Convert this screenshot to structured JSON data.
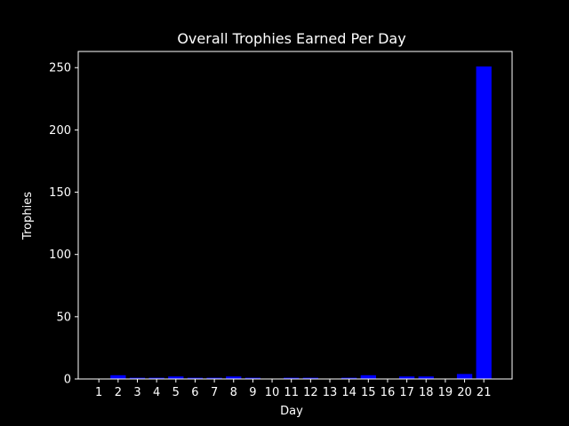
{
  "chart_data": {
    "type": "bar",
    "title": "Overall Trophies Earned Per Day",
    "xlabel": "Day",
    "ylabel": "Trophies",
    "categories": [
      "1",
      "2",
      "3",
      "4",
      "5",
      "6",
      "7",
      "8",
      "9",
      "10",
      "11",
      "12",
      "13",
      "14",
      "15",
      "16",
      "17",
      "18",
      "19",
      "20",
      "21"
    ],
    "values": [
      0,
      3,
      1,
      1,
      2,
      1,
      1,
      2,
      1,
      0,
      1,
      1,
      0,
      1,
      3,
      0,
      2,
      2,
      0,
      4,
      251
    ],
    "ylim": [
      0,
      263
    ],
    "yticks": [
      0,
      50,
      100,
      150,
      200,
      250
    ],
    "grid": false,
    "legend": "none",
    "colors": {
      "background": "#000000",
      "bar": "#0000ff",
      "axes": "#ffffff",
      "text": "#ffffff"
    }
  }
}
